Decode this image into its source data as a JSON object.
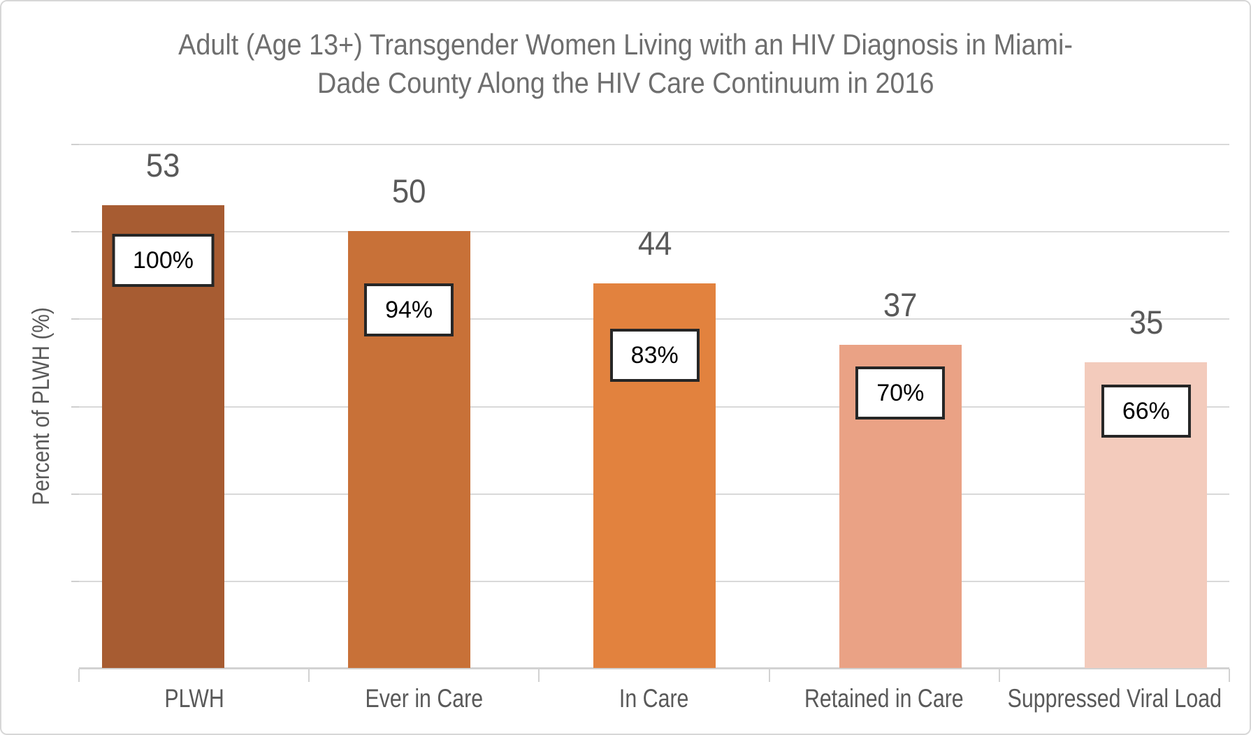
{
  "title": {
    "line1": "Adult (Age 13+) Transgender Women Living with an HIV Diagnosis in Miami-",
    "line2": "Dade County Along the HIV Care Continuum in 2016"
  },
  "y_axis_label": "Percent of PLWH (%)",
  "chart_data": {
    "type": "bar",
    "title": "Adult (Age 13+) Transgender Women Living with an HIV Diagnosis in Miami-Dade County Along the HIV Care Continuum in 2016",
    "categories": [
      "PLWH",
      "Ever in Care",
      "In Care",
      "Retained in Care",
      "Suppressed Viral Load"
    ],
    "values": [
      53,
      50,
      44,
      37,
      35
    ],
    "value_labels": [
      "53",
      "50",
      "44",
      "37",
      "35"
    ],
    "percent_labels": [
      "100%",
      "94%",
      "83%",
      "70%",
      "66%"
    ],
    "bar_colors": [
      "#a75c32",
      "#c87138",
      "#e2823e",
      "#eaa285",
      "#f3cbbc"
    ],
    "xlabel": "",
    "ylabel": "Percent of PLWH (%)",
    "ylim": [
      0,
      60
    ],
    "gridline_step": 10,
    "grid": true,
    "legend": false,
    "y_tick_labels": "hidden",
    "value_label_position": "above-bar",
    "percent_label_position": "boxed-inside-bar-top"
  },
  "colors": {
    "gridline": "#d9d9d9",
    "axis_line": "#d2d2d2",
    "title_text": "#6e6e6e",
    "label_text": "#595959",
    "percent_text": "#000000",
    "percent_box_border": "#262626",
    "percent_box_fill": "#ffffff",
    "frame_border": "#d7d7d7",
    "background": "#ffffff"
  }
}
